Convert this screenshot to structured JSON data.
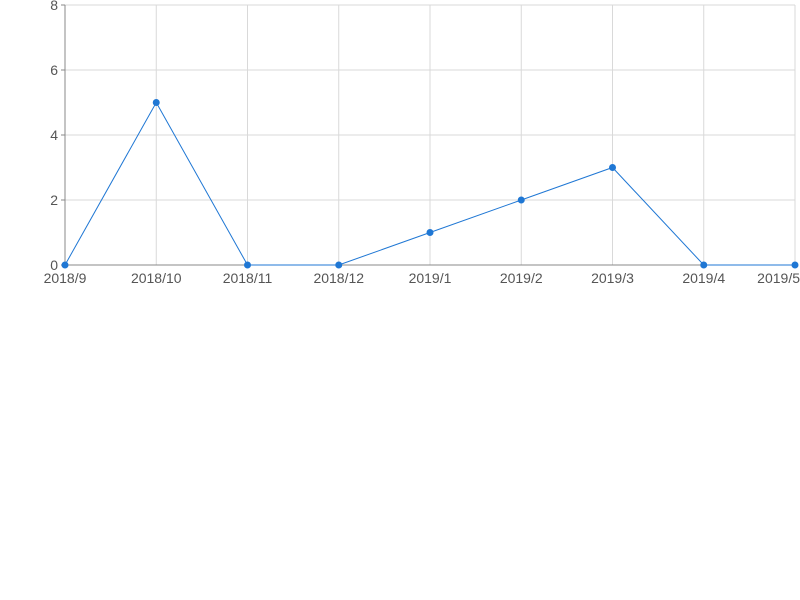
{
  "chart_data": {
    "type": "line",
    "categories": [
      "2018/9",
      "2018/10",
      "2018/11",
      "2018/12",
      "2019/1",
      "2019/2",
      "2019/3",
      "2019/4",
      "2019/5"
    ],
    "series": [
      {
        "values": [
          0,
          5,
          0,
          0,
          1,
          2,
          3,
          0,
          0
        ]
      }
    ],
    "y_ticks": [
      "0",
      "2",
      "4",
      "6",
      "8"
    ],
    "ylim": [
      0,
      8
    ],
    "grid": true,
    "legend": "none",
    "colors": {
      "series": "#1f77d4",
      "grid": "#d9d9d9",
      "axis": "#888888",
      "text": "#555555"
    }
  }
}
